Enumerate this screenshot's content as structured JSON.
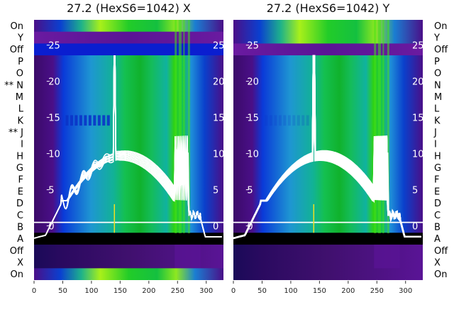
{
  "chart_data": [
    {
      "type": "heatmap",
      "title": "27.2 (HexS6=1042) X",
      "x": {
        "ticks": [
          0,
          50,
          100,
          150,
          200,
          250,
          300
        ],
        "range": [
          0,
          330
        ]
      },
      "y": {
        "ticks": [
          0,
          5,
          10,
          15,
          20,
          25
        ],
        "range": [
          -7.5,
          28.5
        ]
      },
      "row_labels": [
        "On",
        "Y",
        "Off",
        "P",
        "O",
        "** N",
        "M",
        "L",
        "K",
        "** J",
        "I",
        "H",
        "G",
        "F",
        "E",
        "D",
        "C",
        "B",
        "A",
        "Off",
        "X",
        "On"
      ],
      "label_side": "left",
      "baseline_y": -1.7,
      "spike_x": 140,
      "spike_peak": 23.5
    },
    {
      "type": "heatmap",
      "title": "27.2 (HexS6=1042) Y",
      "x": {
        "ticks": [
          0,
          50,
          100,
          150,
          200,
          250,
          300
        ],
        "range": [
          0,
          330
        ]
      },
      "y": {
        "ticks": [
          0,
          5,
          10,
          15,
          20,
          25
        ],
        "range": [
          -7.5,
          28.5
        ]
      },
      "row_labels": [
        "On",
        "Y",
        "Off",
        "P",
        "O",
        "N",
        "M",
        "L",
        "K",
        "J",
        "I",
        "H",
        "G",
        "F",
        "E",
        "D",
        "C",
        "B",
        "A",
        "Off",
        "X",
        "On"
      ],
      "label_side": "right",
      "baseline_y": -1.7,
      "spike_x": 140,
      "spike_peak": 23.5
    }
  ]
}
